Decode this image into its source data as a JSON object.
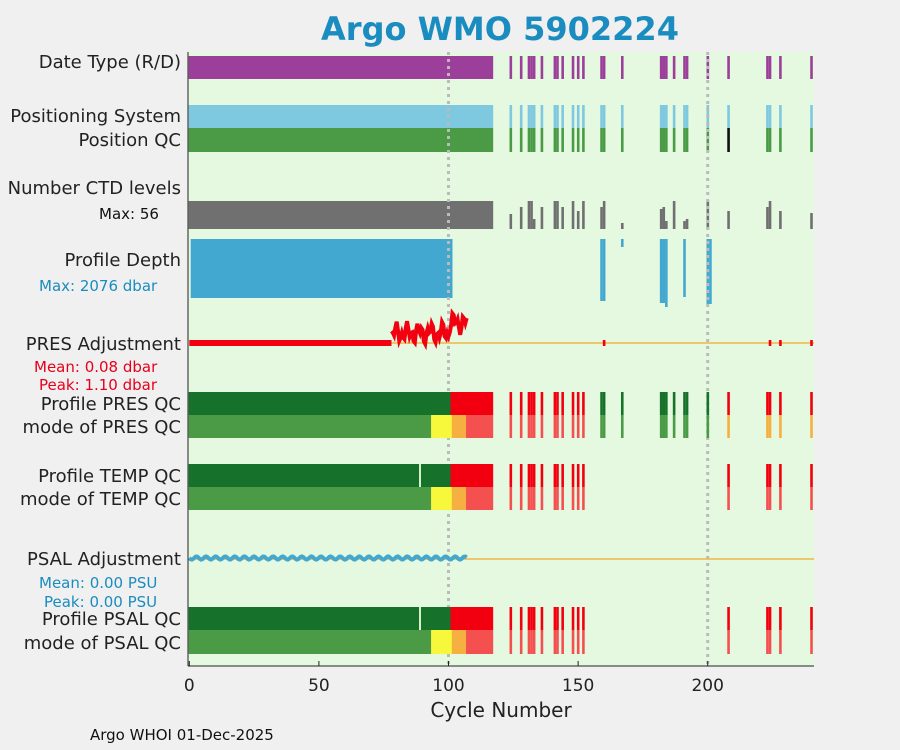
{
  "title": "Argo WMO 5902224",
  "footer": "Argo WHOI 01-Dec-2025",
  "colors": {
    "background": "#e5f8e0",
    "date_type": "#9b3f9b",
    "positioning": "#7ec8e0",
    "qc_good": "#4a9a46",
    "qc_dark": "#16722b",
    "qc_yellow": "#f7f73b",
    "qc_orange": "#f5b041",
    "qc_red": "#f2000f",
    "qc_pink": "#f55050",
    "ctd": "#707070",
    "depth": "#43a8cf",
    "pres_adj": "#f2000f",
    "psal_adj": "#43a8cf",
    "zero_line": "#f2b544"
  },
  "rows": {
    "date_type": "Date Type (R/D)",
    "positioning": "Positioning System",
    "position_qc": "Position QC",
    "ctd_levels": "Number CTD levels",
    "ctd_max": "Max: 56",
    "profile_depth": "Profile Depth",
    "depth_max": "Max: 2076 dbar",
    "pres_adj": "PRES Adjustment",
    "pres_mean": "Mean: 0.08 dbar",
    "pres_peak": "Peak: 1.10 dbar",
    "pres_qc": "Profile PRES QC",
    "pres_mode": "mode of PRES QC",
    "temp_qc": "Profile TEMP QC",
    "temp_mode": "mode of TEMP QC",
    "psal_adj": "PSAL Adjustment",
    "psal_mean": "Mean: 0.00 PSU",
    "psal_peak": "Peak: 0.00 PSU",
    "psal_qc": "Profile PSAL QC",
    "psal_mode": "mode of PSAL QC"
  },
  "chart_data": {
    "type": "timeline",
    "xlabel": "Cycle Number",
    "xlim": [
      -0.5,
      241
    ],
    "xticks": [
      0,
      50,
      100,
      150,
      200
    ],
    "xtick_labels": [
      "0",
      "50",
      "100",
      "150",
      "200"
    ],
    "vertical_markers": [
      100,
      200
    ],
    "sparse_cycles": [
      124,
      128,
      131,
      132,
      133,
      136,
      141,
      142,
      144,
      148,
      150,
      152,
      159,
      160,
      167,
      182,
      183,
      184,
      187,
      191,
      192,
      200,
      208,
      223,
      224,
      228,
      240
    ],
    "continuous_range": [
      0,
      117
    ],
    "ctd_levels_max": 56,
    "profile_depth_max_dbar": 2076,
    "pres_adjustment_mean_dbar": 0.08,
    "pres_adjustment_peak_dbar": 1.1,
    "psal_adjustment_mean_psu": 0.0,
    "psal_adjustment_peak_psu": 0.0
  }
}
